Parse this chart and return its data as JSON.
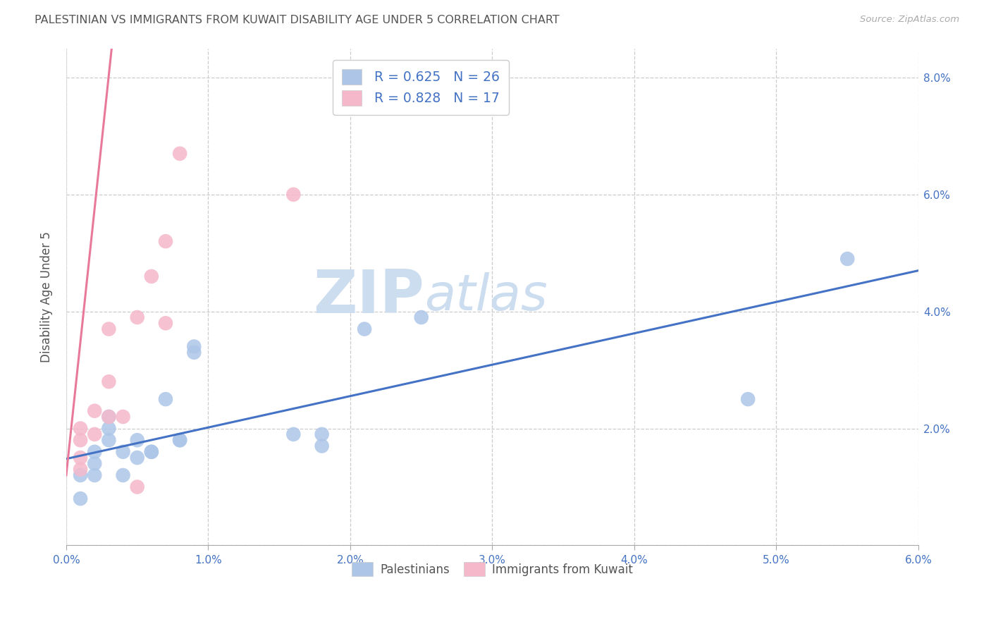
{
  "title": "PALESTINIAN VS IMMIGRANTS FROM KUWAIT DISABILITY AGE UNDER 5 CORRELATION CHART",
  "source": "Source: ZipAtlas.com",
  "ylabel": "Disability Age Under 5",
  "xlim": [
    0.0,
    0.06
  ],
  "ylim": [
    0.0,
    0.085
  ],
  "xtick_vals": [
    0.0,
    0.01,
    0.02,
    0.03,
    0.04,
    0.05,
    0.06
  ],
  "ytick_vals": [
    0.0,
    0.02,
    0.04,
    0.06,
    0.08
  ],
  "ytick_labels_right": [
    "",
    "2.0%",
    "4.0%",
    "6.0%",
    "8.0%"
  ],
  "xtick_labels": [
    "0.0%",
    "1.0%",
    "2.0%",
    "3.0%",
    "4.0%",
    "5.0%",
    "6.0%"
  ],
  "blue_label": "Palestinians",
  "pink_label": "Immigrants from Kuwait",
  "blue_R_text": "R = 0.625",
  "blue_N_text": "N = 26",
  "pink_R_text": "R = 0.828",
  "pink_N_text": "N = 17",
  "blue_scatter_color": "#adc6e8",
  "pink_scatter_color": "#f5b8ca",
  "blue_line_color": "#4472c4",
  "pink_line_color": "#e8799a",
  "axis_tick_color": "#4472c4",
  "title_color": "#555555",
  "source_color": "#aaaaaa",
  "watermark_zip": "ZIP",
  "watermark_atlas": "atlas",
  "watermark_color": "#ccddf0",
  "grid_color": "#cccccc",
  "blue_points_x": [
    0.001,
    0.001,
    0.002,
    0.002,
    0.002,
    0.003,
    0.003,
    0.004,
    0.004,
    0.005,
    0.005,
    0.006,
    0.006,
    0.007,
    0.008,
    0.008,
    0.009,
    0.009,
    0.016,
    0.018,
    0.018,
    0.021,
    0.025,
    0.048,
    0.055,
    0.003
  ],
  "blue_points_y": [
    0.012,
    0.008,
    0.014,
    0.016,
    0.012,
    0.02,
    0.018,
    0.016,
    0.012,
    0.015,
    0.018,
    0.016,
    0.016,
    0.025,
    0.018,
    0.018,
    0.034,
    0.033,
    0.019,
    0.017,
    0.019,
    0.037,
    0.039,
    0.025,
    0.049,
    0.022
  ],
  "pink_points_x": [
    0.001,
    0.001,
    0.001,
    0.001,
    0.002,
    0.002,
    0.003,
    0.003,
    0.003,
    0.004,
    0.005,
    0.005,
    0.006,
    0.007,
    0.007,
    0.008,
    0.016
  ],
  "pink_points_y": [
    0.02,
    0.015,
    0.018,
    0.013,
    0.019,
    0.023,
    0.028,
    0.022,
    0.037,
    0.022,
    0.01,
    0.039,
    0.046,
    0.038,
    0.052,
    0.067,
    0.06
  ],
  "blue_line_x0": 0.0,
  "blue_line_x1": 0.06,
  "blue_line_y0": 0.0148,
  "blue_line_y1": 0.047,
  "pink_line_x0": 0.0,
  "pink_line_x1": 0.0032,
  "pink_line_y0": 0.012,
  "pink_line_y1": 0.085
}
